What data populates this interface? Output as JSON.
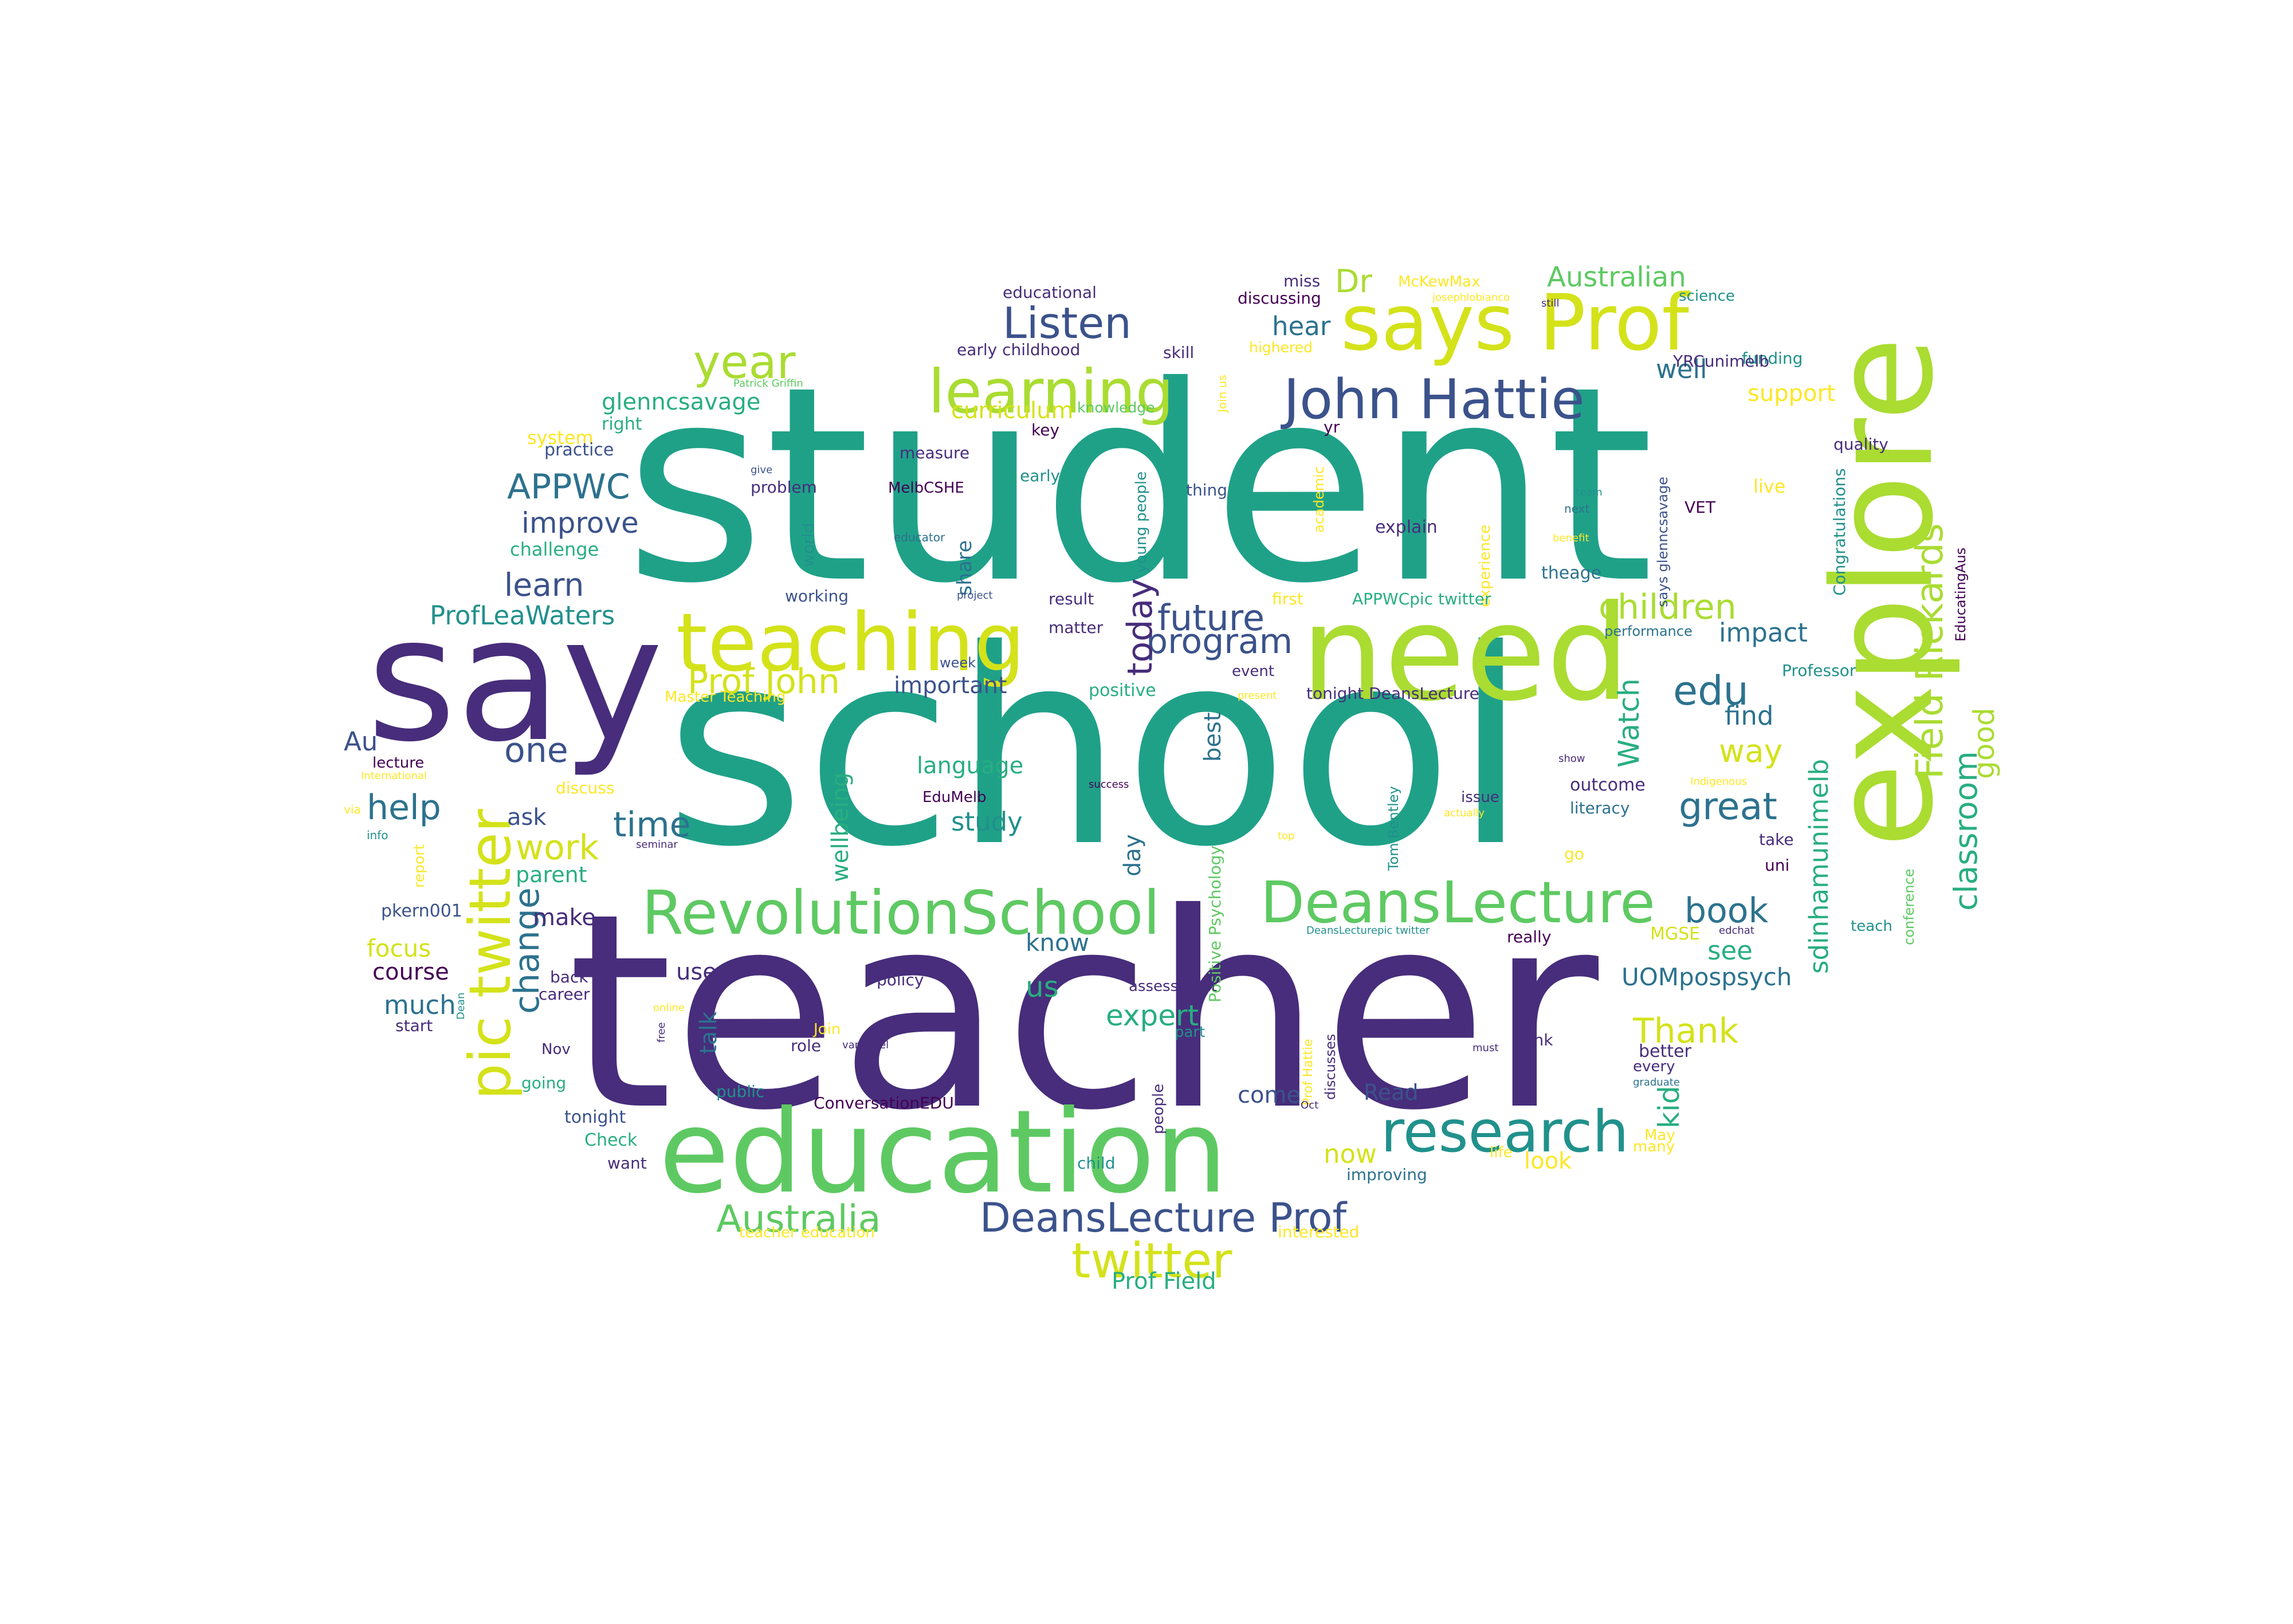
{
  "palette": {
    "dark_purple": "#440154",
    "indigo": "#472d7b",
    "blue_violet": "#3b528b",
    "steel_blue": "#2c728e",
    "teal": "#21918c",
    "sea_green": "#1fa188",
    "emerald": "#28ae80",
    "green": "#5ec962",
    "lime": "#aadc32",
    "yellow": "#d4e21a",
    "bright_yellow": "#fde725"
  },
  "words": [
    {
      "t": "student",
      "c": "sea_green"
    },
    {
      "t": "school",
      "c": "sea_green"
    },
    {
      "t": "teacher",
      "c": "indigo"
    },
    {
      "t": "say",
      "c": "indigo"
    },
    {
      "t": "need",
      "c": "lime"
    },
    {
      "t": "explore",
      "c": "lime"
    },
    {
      "t": "education",
      "c": "green"
    },
    {
      "t": "teaching",
      "c": "yellow"
    },
    {
      "t": "says Prof",
      "c": "yellow"
    },
    {
      "t": "learning",
      "c": "lime"
    },
    {
      "t": "RevolutionSchool",
      "c": "green"
    },
    {
      "t": "DeansLecture",
      "c": "green"
    },
    {
      "t": "John Hattie",
      "c": "blue_violet"
    },
    {
      "t": "research",
      "c": "teal"
    },
    {
      "t": "pic twitter",
      "c": "yellow"
    },
    {
      "t": "twitter",
      "c": "yellow"
    },
    {
      "t": "year",
      "c": "lime"
    },
    {
      "t": "Listen",
      "c": "blue_violet"
    },
    {
      "t": "Field Rickards",
      "c": "lime"
    },
    {
      "t": "DeansLecture Prof",
      "c": "blue_violet"
    },
    {
      "t": "Prof John",
      "c": "yellow"
    },
    {
      "t": "children",
      "c": "lime"
    },
    {
      "t": "program",
      "c": "blue_violet"
    },
    {
      "t": "future",
      "c": "blue_violet"
    },
    {
      "t": "APPWC",
      "c": "steel_blue"
    },
    {
      "t": "edu",
      "c": "steel_blue"
    },
    {
      "t": "Australia",
      "c": "green"
    },
    {
      "t": "great",
      "c": "steel_blue"
    },
    {
      "t": "help",
      "c": "steel_blue"
    },
    {
      "t": "today",
      "c": "indigo"
    },
    {
      "t": "classroom",
      "c": "emerald"
    },
    {
      "t": "book",
      "c": "steel_blue"
    },
    {
      "t": "time",
      "c": "steel_blue"
    },
    {
      "t": "one",
      "c": "blue_violet"
    },
    {
      "t": "work",
      "c": "yellow"
    },
    {
      "t": "Thank",
      "c": "yellow"
    },
    {
      "t": "change",
      "c": "steel_blue"
    },
    {
      "t": "sdinhamunimelb",
      "c": "emerald"
    },
    {
      "t": "Watch",
      "c": "emerald"
    },
    {
      "t": "Dr",
      "c": "lime"
    },
    {
      "t": "good",
      "c": "lime"
    },
    {
      "t": "improve",
      "c": "blue_violet"
    },
    {
      "t": "way",
      "c": "yellow"
    },
    {
      "t": "learn",
      "c": "blue_violet"
    },
    {
      "t": "expert",
      "c": "emerald"
    },
    {
      "t": "kid",
      "c": "emerald"
    },
    {
      "t": "ProfLeaWaters",
      "c": "teal"
    },
    {
      "t": "impact",
      "c": "steel_blue"
    },
    {
      "t": "Australian",
      "c": "green"
    },
    {
      "t": "wellbeing",
      "c": "emerald"
    },
    {
      "t": "hear",
      "c": "steel_blue"
    },
    {
      "t": "glenncsavage",
      "c": "emerald"
    },
    {
      "t": "study",
      "c": "teal"
    },
    {
      "t": "find",
      "c": "steel_blue"
    },
    {
      "t": "best",
      "c": "steel_blue"
    },
    {
      "t": "important",
      "c": "blue_violet"
    },
    {
      "t": "know",
      "c": "steel_blue"
    },
    {
      "t": "UOMpospsych",
      "c": "steel_blue"
    },
    {
      "t": "much",
      "c": "steel_blue"
    },
    {
      "t": "see",
      "c": "emerald"
    },
    {
      "t": "well",
      "c": "steel_blue"
    },
    {
      "t": "language",
      "c": "emerald"
    },
    {
      "t": "curriculum",
      "c": "yellow"
    },
    {
      "t": "now",
      "c": "yellow"
    },
    {
      "t": "focus",
      "c": "yellow"
    },
    {
      "t": "Prof Field",
      "c": "emerald"
    },
    {
      "t": "support",
      "c": "bright_yellow"
    },
    {
      "t": "day",
      "c": "steel_blue"
    },
    {
      "t": "make",
      "c": "indigo"
    },
    {
      "t": "talk",
      "c": "steel_blue"
    },
    {
      "t": "us",
      "c": "emerald"
    },
    {
      "t": "ask",
      "c": "blue_violet"
    },
    {
      "t": "course",
      "c": "dark_purple"
    },
    {
      "t": "look",
      "c": "bright_yellow"
    },
    {
      "t": "come",
      "c": "blue_violet"
    },
    {
      "t": "Au",
      "c": "blue_violet"
    },
    {
      "t": "use",
      "c": "indigo"
    },
    {
      "t": "parent",
      "c": "emerald"
    },
    {
      "t": "Read",
      "c": "blue_violet"
    },
    {
      "t": "share",
      "c": "steel_blue"
    },
    {
      "t": "educational",
      "c": "indigo"
    },
    {
      "t": "early childhood",
      "c": "indigo"
    },
    {
      "t": "discussing",
      "c": "dark_purple"
    },
    {
      "t": "miss",
      "c": "indigo"
    },
    {
      "t": "McKewMax",
      "c": "bright_yellow"
    },
    {
      "t": "science",
      "c": "teal"
    },
    {
      "t": "skill",
      "c": "indigo"
    },
    {
      "t": "funding",
      "c": "teal"
    },
    {
      "t": "highered",
      "c": "bright_yellow"
    },
    {
      "t": "YRCunimelb",
      "c": "indigo"
    },
    {
      "t": "Patrick Griffin",
      "c": "green"
    },
    {
      "t": "knowledge",
      "c": "green"
    },
    {
      "t": "key",
      "c": "dark_purple"
    },
    {
      "t": "system",
      "c": "bright_yellow"
    },
    {
      "t": "right",
      "c": "emerald"
    },
    {
      "t": "practice",
      "c": "blue_violet"
    },
    {
      "t": "measure",
      "c": "indigo"
    },
    {
      "t": "give",
      "c": "blue_violet"
    },
    {
      "t": "problem",
      "c": "indigo"
    },
    {
      "t": "MelbCSHE",
      "c": "dark_purple"
    },
    {
      "t": "early",
      "c": "teal"
    },
    {
      "t": "thing",
      "c": "blue_violet"
    },
    {
      "t": "quality",
      "c": "indigo"
    },
    {
      "t": "live",
      "c": "bright_yellow"
    },
    {
      "t": "team",
      "c": "teal"
    },
    {
      "t": "VET",
      "c": "dark_purple"
    },
    {
      "t": "explain",
      "c": "indigo"
    },
    {
      "t": "benefit",
      "c": "bright_yellow"
    },
    {
      "t": "challenge",
      "c": "emerald"
    },
    {
      "t": "world",
      "c": "teal"
    },
    {
      "t": "educator",
      "c": "steel_blue"
    },
    {
      "t": "young people",
      "c": "teal"
    },
    {
      "t": "academic",
      "c": "bright_yellow"
    },
    {
      "t": "experience",
      "c": "bright_yellow"
    },
    {
      "t": "next",
      "c": "steel_blue"
    },
    {
      "t": "Congratulations",
      "c": "teal"
    },
    {
      "t": "says glenncsavage",
      "c": "blue_violet"
    },
    {
      "t": "EducatingAus",
      "c": "dark_purple"
    },
    {
      "t": "working",
      "c": "blue_violet"
    },
    {
      "t": "project",
      "c": "blue_violet"
    },
    {
      "t": "result",
      "c": "indigo"
    },
    {
      "t": "first",
      "c": "bright_yellow"
    },
    {
      "t": "APPWCpic twitter",
      "c": "emerald"
    },
    {
      "t": "theage",
      "c": "steel_blue"
    },
    {
      "t": "performance",
      "c": "steel_blue"
    },
    {
      "t": "matter",
      "c": "indigo"
    },
    {
      "t": "positive",
      "c": "emerald"
    },
    {
      "t": "present",
      "c": "bright_yellow"
    },
    {
      "t": "tonight DeansLecture",
      "c": "indigo"
    },
    {
      "t": "Professor",
      "c": "teal"
    },
    {
      "t": "Master Teaching",
      "c": "bright_yellow"
    },
    {
      "t": "week",
      "c": "blue_violet"
    },
    {
      "t": "event",
      "c": "indigo"
    },
    {
      "t": "lecture",
      "c": "dark_purple"
    },
    {
      "t": "International",
      "c": "bright_yellow"
    },
    {
      "t": "discuss",
      "c": "bright_yellow"
    },
    {
      "t": "via",
      "c": "bright_yellow"
    },
    {
      "t": "info",
      "c": "teal"
    },
    {
      "t": "report",
      "c": "bright_yellow"
    },
    {
      "t": "seminar",
      "c": "indigo"
    },
    {
      "t": "EduMelb",
      "c": "dark_purple"
    },
    {
      "t": "success",
      "c": "dark_purple"
    },
    {
      "t": "Positive Psychology",
      "c": "green"
    },
    {
      "t": "top",
      "c": "bright_yellow"
    },
    {
      "t": "Tom Bentley",
      "c": "teal"
    },
    {
      "t": "issue",
      "c": "indigo"
    },
    {
      "t": "actually",
      "c": "bright_yellow"
    },
    {
      "t": "show",
      "c": "indigo"
    },
    {
      "t": "outcome",
      "c": "indigo"
    },
    {
      "t": "literacy",
      "c": "steel_blue"
    },
    {
      "t": "Indigenous",
      "c": "bright_yellow"
    },
    {
      "t": "take",
      "c": "indigo"
    },
    {
      "t": "uni",
      "c": "dark_purple"
    },
    {
      "t": "go",
      "c": "bright_yellow"
    },
    {
      "t": "conference",
      "c": "green"
    },
    {
      "t": "teach",
      "c": "teal"
    },
    {
      "t": "MGSE",
      "c": "yellow"
    },
    {
      "t": "edchat",
      "c": "indigo"
    },
    {
      "t": "DeansLecturepic twitter",
      "c": "teal"
    },
    {
      "t": "really",
      "c": "dark_purple"
    },
    {
      "t": "pkern001",
      "c": "blue_violet"
    },
    {
      "t": "back",
      "c": "indigo"
    },
    {
      "t": "career",
      "c": "indigo"
    },
    {
      "t": "policy",
      "c": "indigo"
    },
    {
      "t": "assessment",
      "c": "indigo"
    },
    {
      "t": "Dean",
      "c": "teal"
    },
    {
      "t": "online",
      "c": "bright_yellow"
    },
    {
      "t": "free",
      "c": "indigo"
    },
    {
      "t": "start",
      "c": "indigo"
    },
    {
      "t": "Join",
      "c": "bright_yellow"
    },
    {
      "t": "Join us",
      "c": "bright_yellow"
    },
    {
      "t": "role",
      "c": "indigo"
    },
    {
      "t": "van Driel",
      "c": "indigo"
    },
    {
      "t": "part",
      "c": "teal"
    },
    {
      "t": "Prof Hattie",
      "c": "bright_yellow"
    },
    {
      "t": "discusses",
      "c": "indigo"
    },
    {
      "t": "must",
      "c": "indigo"
    },
    {
      "t": "think",
      "c": "indigo"
    },
    {
      "t": "better",
      "c": "indigo"
    },
    {
      "t": "every",
      "c": "indigo"
    },
    {
      "t": "graduate",
      "c": "steel_blue"
    },
    {
      "t": "Nov",
      "c": "indigo"
    },
    {
      "t": "going",
      "c": "emerald"
    },
    {
      "t": "public",
      "c": "teal"
    },
    {
      "t": "ConversationEDU",
      "c": "dark_purple"
    },
    {
      "t": "people",
      "c": "indigo"
    },
    {
      "t": "Oct",
      "c": "indigo"
    },
    {
      "t": "tonight",
      "c": "blue_violet"
    },
    {
      "t": "Check",
      "c": "emerald"
    },
    {
      "t": "want",
      "c": "indigo"
    },
    {
      "t": "child",
      "c": "teal"
    },
    {
      "t": "improving",
      "c": "steel_blue"
    },
    {
      "t": "life",
      "c": "bright_yellow"
    },
    {
      "t": "May",
      "c": "bright_yellow"
    },
    {
      "t": "many",
      "c": "bright_yellow"
    },
    {
      "t": "teacher education",
      "c": "bright_yellow"
    },
    {
      "t": "interested",
      "c": "bright_yellow"
    },
    {
      "t": "josephlobianco",
      "c": "bright_yellow"
    },
    {
      "t": "still",
      "c": "indigo"
    },
    {
      "t": "yr",
      "c": "dark_purple"
    }
  ]
}
